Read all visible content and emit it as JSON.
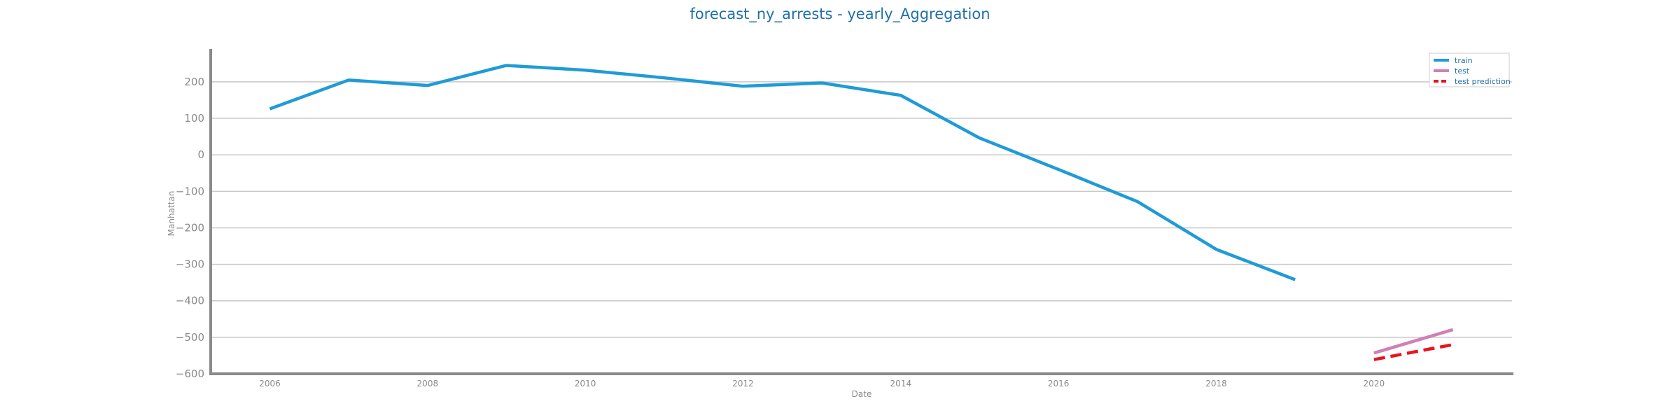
{
  "chart_data": {
    "type": "line",
    "title": "forecast_ny_arrests - yearly_Aggregation",
    "xlabel": "Date",
    "ylabel": "Manhattan",
    "xlim": [
      2005.25,
      2021.75
    ],
    "ylim": [
      -600,
      290
    ],
    "x_ticks": [
      "2006",
      "2008",
      "2010",
      "2012",
      "2014",
      "2016",
      "2018",
      "2020"
    ],
    "y_ticks": [
      "200",
      "100",
      "0",
      "−100",
      "−200",
      "−300",
      "−400",
      "−500",
      "−600"
    ],
    "grid": "horizontal",
    "legend_position": "top-right",
    "series": [
      {
        "name": "train",
        "color": "#1f9bd7",
        "style": "solid",
        "x": [
          2006,
          2007,
          2008,
          2009,
          2010,
          2011,
          2012,
          2013,
          2014,
          2015,
          2016,
          2017,
          2018,
          2019
        ],
        "y": [
          126,
          205,
          190,
          245,
          232,
          211,
          188,
          197,
          163,
          46,
          -40,
          -128,
          -259,
          -342
        ]
      },
      {
        "name": "test",
        "color": "#d17fb5",
        "style": "solid",
        "x": [
          2020,
          2021
        ],
        "y": [
          -543,
          -479
        ]
      },
      {
        "name": "test prediction",
        "color": "#e8141e",
        "style": "dashed",
        "x": [
          2020,
          2021
        ],
        "y": [
          -561,
          -520
        ]
      }
    ]
  }
}
